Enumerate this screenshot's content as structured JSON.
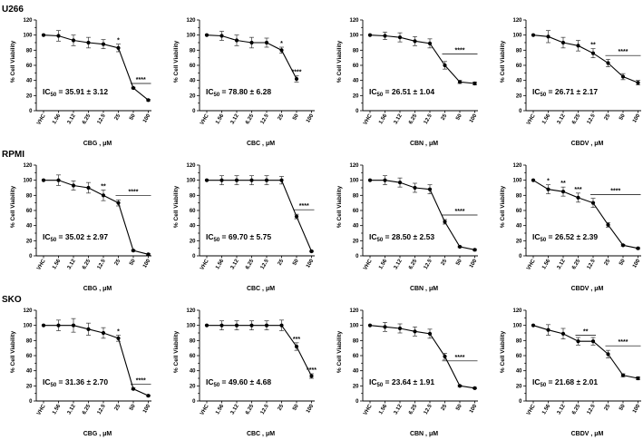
{
  "rows": [
    {
      "label": "U266"
    },
    {
      "label": "RPMI"
    },
    {
      "label": "SKO"
    }
  ],
  "axis": {
    "ylabel": "% Cell Viability",
    "unit": "μM",
    "ylim": [
      0,
      120
    ],
    "yticks": [
      "0",
      "10",
      "20",
      "30",
      "40",
      "50",
      "60",
      "70",
      "80",
      "90",
      "100",
      "110",
      "120"
    ],
    "yticks_shown": [
      "0",
      "20",
      "40",
      "60",
      "80",
      "100",
      "120"
    ],
    "categories": [
      "VHC",
      "1.56",
      "3.12",
      "6.25",
      "12.5",
      "25",
      "50",
      "100"
    ]
  },
  "chart_data": [
    {
      "type": "line",
      "row": "U266",
      "compound": "CBG",
      "ic50": "35.91 ± 3.12",
      "values": [
        100,
        99,
        93,
        90,
        88,
        83,
        30,
        14
      ],
      "errors": [
        0,
        7,
        7,
        7,
        6,
        5,
        1,
        1
      ],
      "annotations": [
        {
          "text": "*",
          "at": 5
        },
        {
          "text": "****",
          "from": 6,
          "to": 7,
          "y": 36
        }
      ]
    },
    {
      "type": "line",
      "row": "U266",
      "compound": "CBC",
      "ic50": "78.80 ± 6.28",
      "values": [
        100,
        99,
        93,
        90,
        90,
        80,
        42,
        0
      ],
      "errors": [
        0,
        6,
        7,
        7,
        6,
        4,
        4,
        0
      ],
      "show": 7,
      "annotations": [
        {
          "text": "*",
          "at": 5
        },
        {
          "text": "****",
          "at": 6
        }
      ]
    },
    {
      "type": "line",
      "row": "U266",
      "compound": "CBN",
      "ic50": "26.51 ± 1.04",
      "values": [
        100,
        99,
        97,
        92,
        89,
        60,
        38,
        36
      ],
      "errors": [
        0,
        5,
        6,
        6,
        6,
        5,
        2,
        2
      ],
      "annotations": [
        {
          "text": "****",
          "from": 5,
          "to": 7,
          "y": 75
        }
      ]
    },
    {
      "type": "line",
      "row": "U266",
      "compound": "CBDV",
      "ic50": "26.71 ± 2.17",
      "values": [
        100,
        98,
        90,
        86,
        76,
        63,
        45,
        37
      ],
      "errors": [
        0,
        8,
        7,
        7,
        6,
        5,
        4,
        3
      ],
      "annotations": [
        {
          "text": "**",
          "at": 4
        },
        {
          "text": "****",
          "from": 5,
          "to": 7,
          "y": 73
        }
      ]
    },
    {
      "type": "line",
      "row": "RPMI",
      "compound": "CBG",
      "ic50": "35.02 ± 2.97",
      "values": [
        100,
        100,
        93,
        90,
        80,
        70,
        7,
        2
      ],
      "errors": [
        0,
        7,
        6,
        7,
        7,
        4,
        1,
        1
      ],
      "annotations": [
        {
          "text": "**",
          "at": 4
        },
        {
          "text": "****",
          "from": 5,
          "to": 7,
          "y": 80
        }
      ]
    },
    {
      "type": "line",
      "row": "RPMI",
      "compound": "CBC",
      "ic50": "69.70 ± 5.75",
      "values": [
        100,
        100,
        100,
        100,
        100,
        100,
        52,
        6
      ],
      "errors": [
        0,
        6,
        6,
        6,
        6,
        5,
        3,
        1
      ],
      "annotations": [
        {
          "text": "****",
          "from": 6,
          "to": 7,
          "y": 61
        }
      ]
    },
    {
      "type": "line",
      "row": "RPMI",
      "compound": "CBN",
      "ic50": "28.50 ± 2.53",
      "values": [
        100,
        100,
        97,
        90,
        88,
        45,
        12,
        8
      ],
      "errors": [
        0,
        6,
        6,
        6,
        6,
        3,
        1,
        1
      ],
      "annotations": [
        {
          "text": "****",
          "from": 5,
          "to": 7,
          "y": 54
        }
      ]
    },
    {
      "type": "line",
      "row": "RPMI",
      "compound": "CBDV",
      "ic50": "26.52 ± 2.39",
      "values": [
        100,
        88,
        85,
        77,
        70,
        41,
        14,
        10
      ],
      "errors": [
        0,
        6,
        6,
        6,
        6,
        3,
        1,
        1
      ],
      "annotations": [
        {
          "text": "*",
          "at": 1
        },
        {
          "text": "**",
          "at": 2
        },
        {
          "text": "***",
          "at": 3
        },
        {
          "text": "****",
          "from": 4,
          "to": 7,
          "y": 81
        }
      ]
    },
    {
      "type": "line",
      "row": "SKO",
      "compound": "CBG",
      "ic50": "31.36 ± 2.70",
      "values": [
        100,
        100,
        100,
        95,
        90,
        83,
        16,
        7
      ],
      "errors": [
        0,
        7,
        9,
        8,
        7,
        4,
        1,
        1
      ],
      "annotations": [
        {
          "text": "*",
          "at": 5
        },
        {
          "text": "****",
          "from": 6,
          "to": 7,
          "y": 22
        }
      ]
    },
    {
      "type": "line",
      "row": "SKO",
      "compound": "CBC",
      "ic50": "49.60 ± 4.68",
      "values": [
        100,
        100,
        100,
        100,
        100,
        100,
        72,
        33
      ],
      "errors": [
        0,
        6,
        6,
        6,
        6,
        7,
        5,
        3
      ],
      "annotations": [
        {
          "text": "***",
          "at": 6
        },
        {
          "text": "****",
          "at": 7
        }
      ]
    },
    {
      "type": "line",
      "row": "SKO",
      "compound": "CBN",
      "ic50": "23.64 ± 1.91",
      "values": [
        100,
        98,
        96,
        92,
        89,
        59,
        20,
        17
      ],
      "errors": [
        0,
        6,
        6,
        6,
        6,
        4,
        1,
        1
      ],
      "annotations": [
        {
          "text": "****",
          "from": 5,
          "to": 7,
          "y": 53
        }
      ]
    },
    {
      "type": "line",
      "row": "SKO",
      "compound": "CBDV",
      "ic50": "21.68 ± 2.01",
      "values": [
        100,
        94,
        89,
        79,
        79,
        62,
        34,
        30
      ],
      "errors": [
        0,
        7,
        7,
        5,
        5,
        5,
        2,
        2
      ],
      "annotations": [
        {
          "text": "**",
          "from": 3,
          "to": 4,
          "y": 87
        },
        {
          "text": "****",
          "from": 5,
          "to": 7,
          "y": 73
        }
      ]
    }
  ]
}
